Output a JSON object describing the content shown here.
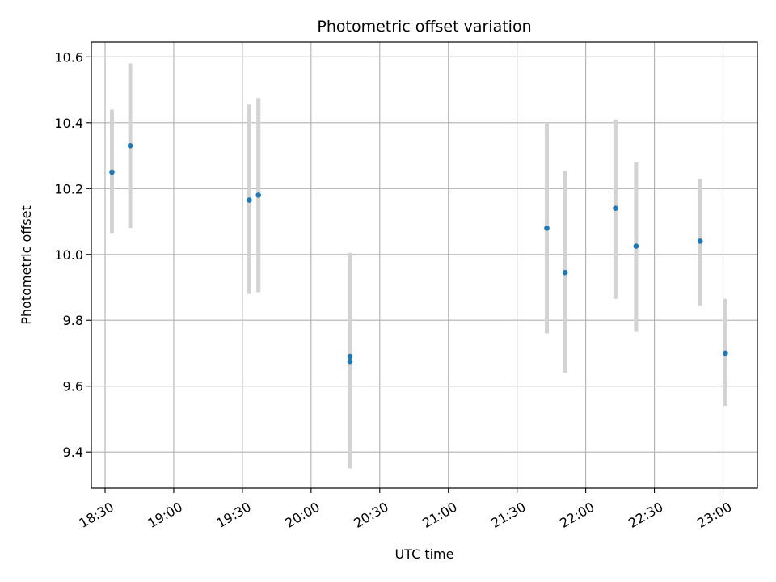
{
  "chart_data": {
    "type": "scatter",
    "title": "Photometric offset variation",
    "xlabel": "UTC time",
    "ylabel": "Photometric offset",
    "grid": true,
    "xlim": [
      "18:24",
      "23:15"
    ],
    "ylim": [
      9.29,
      10.645
    ],
    "x_ticks": [
      "18:30",
      "19:00",
      "19:30",
      "20:00",
      "20:30",
      "21:00",
      "21:30",
      "22:00",
      "22:30",
      "23:00"
    ],
    "y_ticks": [
      9.4,
      9.6,
      9.8,
      10.0,
      10.2,
      10.4,
      10.6
    ],
    "y_tick_labels": [
      "9.4",
      "9.6",
      "9.8",
      "10.0",
      "10.2",
      "10.4",
      "10.6"
    ],
    "colors": {
      "point": "#1f77b4",
      "errorbar": "#d3d3d3",
      "grid": "#b0b0b0"
    },
    "points": [
      {
        "x": "18:33",
        "y": 10.25,
        "y_low": 10.065,
        "y_high": 10.44
      },
      {
        "x": "18:41",
        "y": 10.33,
        "y_low": 10.08,
        "y_high": 10.58
      },
      {
        "x": "19:33",
        "y": 10.165,
        "y_low": 9.88,
        "y_high": 10.455
      },
      {
        "x": "19:37",
        "y": 10.18,
        "y_low": 9.885,
        "y_high": 10.475
      },
      {
        "x": "20:17",
        "y": 9.69,
        "y_low": 9.38,
        "y_high": 10.005
      },
      {
        "x": "20:17",
        "y": 9.675,
        "y_low": 9.35,
        "y_high": 9.985
      },
      {
        "x": "21:43",
        "y": 10.08,
        "y_low": 9.76,
        "y_high": 10.4
      },
      {
        "x": "21:51",
        "y": 9.945,
        "y_low": 9.64,
        "y_high": 10.255
      },
      {
        "x": "22:13",
        "y": 10.14,
        "y_low": 9.865,
        "y_high": 10.41
      },
      {
        "x": "22:22",
        "y": 10.025,
        "y_low": 9.765,
        "y_high": 10.28
      },
      {
        "x": "22:50",
        "y": 10.04,
        "y_low": 9.845,
        "y_high": 10.23
      },
      {
        "x": "23:01",
        "y": 9.7,
        "y_low": 9.54,
        "y_high": 9.865
      }
    ]
  }
}
